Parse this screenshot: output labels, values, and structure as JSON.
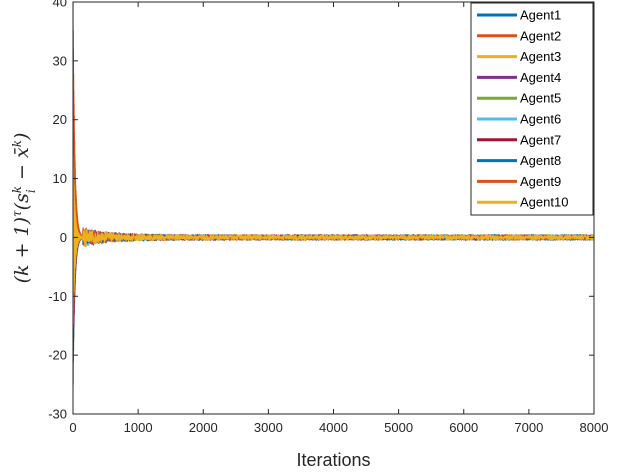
{
  "chart_data": {
    "type": "line",
    "xlabel": "Iterations",
    "ylabel": "(k + 1)^τ (s_i^k − x̄^k)",
    "xlim": [
      0,
      8000
    ],
    "ylim": [
      -30,
      40
    ],
    "xticks": [
      "0",
      "1000",
      "2000",
      "3000",
      "4000",
      "5000",
      "6000",
      "7000",
      "8000"
    ],
    "yticks": [
      "-30",
      "-20",
      "-10",
      "0",
      "10",
      "20",
      "30",
      "40"
    ],
    "grid": false,
    "legend_position": "top-right",
    "series": [
      {
        "name": "Agent1",
        "color": "#0072BD",
        "early_peaks": [
          10,
          -25.5
        ],
        "noise": 0.5
      },
      {
        "name": "Agent2",
        "color": "#D95319",
        "early_peaks": [
          40,
          -17
        ],
        "noise": 0.5
      },
      {
        "name": "Agent3",
        "color": "#EDB120",
        "early_peaks": [
          14,
          -16
        ],
        "noise": 0.5
      },
      {
        "name": "Agent4",
        "color": "#7E2F8E",
        "early_peaks": [
          8,
          -14
        ],
        "noise": 0.5
      },
      {
        "name": "Agent5",
        "color": "#77AC30",
        "early_peaks": [
          7,
          -12
        ],
        "noise": 0.5
      },
      {
        "name": "Agent6",
        "color": "#4DBEEE",
        "early_peaks": [
          9,
          -10
        ],
        "noise": 0.5
      },
      {
        "name": "Agent7",
        "color": "#A2142F",
        "early_peaks": [
          12,
          -23
        ],
        "noise": 0.5
      },
      {
        "name": "Agent8",
        "color": "#0072BD",
        "early_peaks": [
          6,
          -15
        ],
        "noise": 0.5
      },
      {
        "name": "Agent9",
        "color": "#D95319",
        "early_peaks": [
          30,
          -13
        ],
        "noise": 0.5
      },
      {
        "name": "Agent10",
        "color": "#EDB120",
        "early_peaks": [
          14.5,
          -16.5
        ],
        "noise": 0.5
      }
    ]
  }
}
